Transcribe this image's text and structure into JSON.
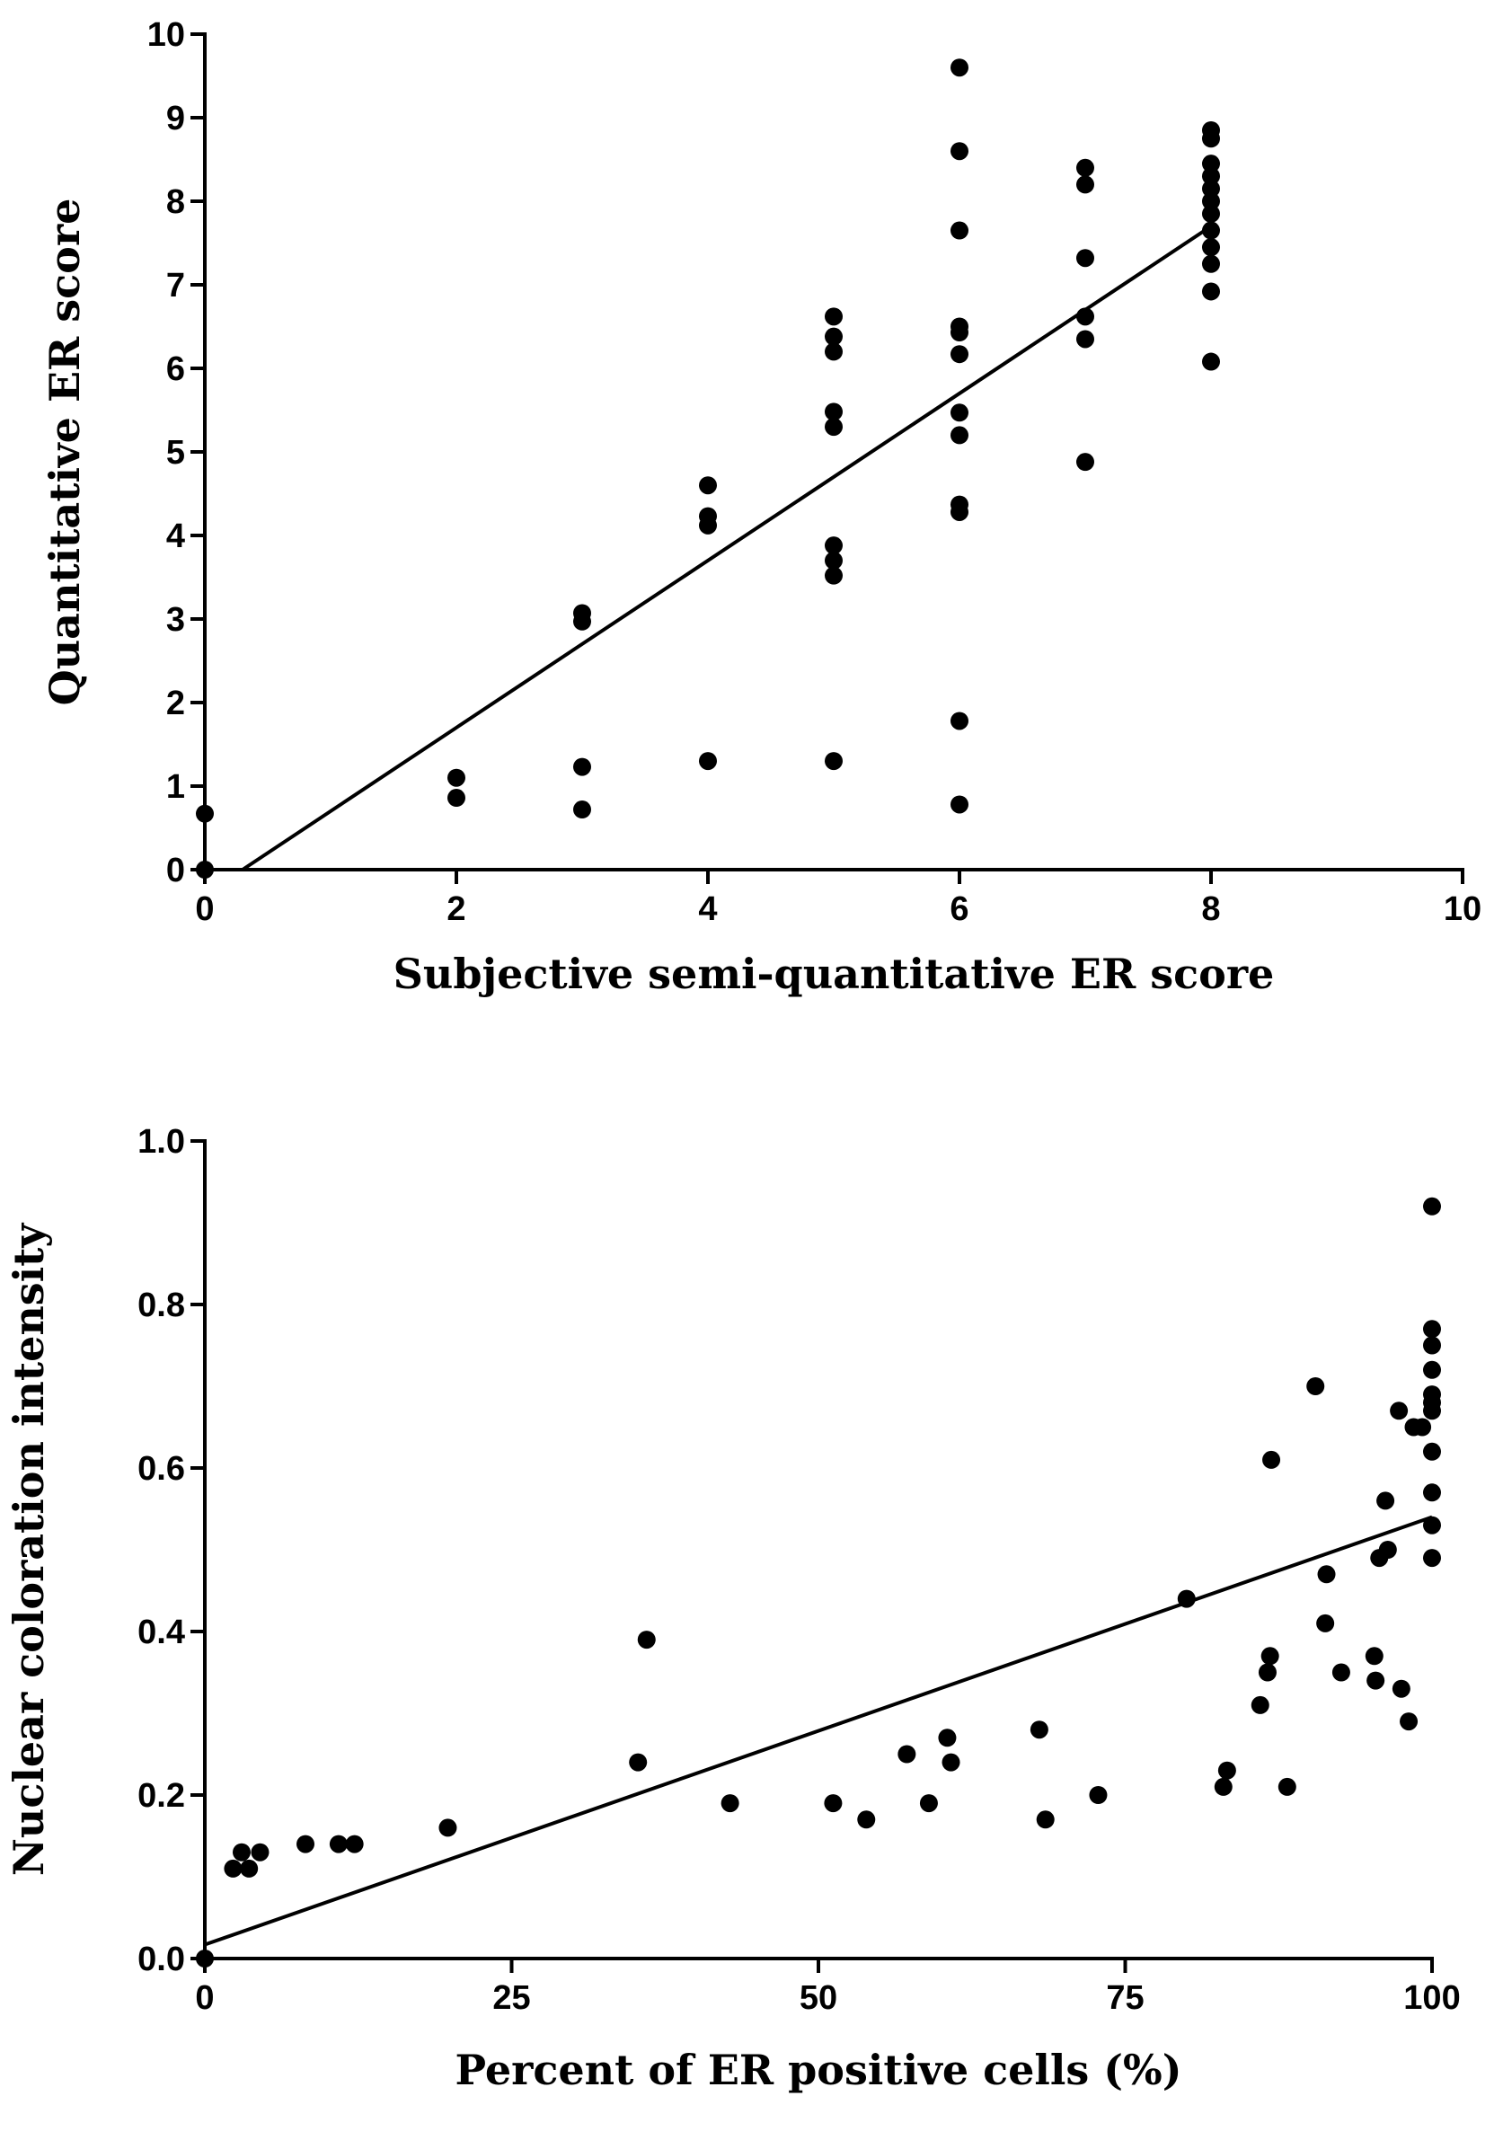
{
  "chart_data": [
    {
      "type": "scatter",
      "xlabel": "Subjective semi-quantitative ER score",
      "ylabel": "Quantitative ER score",
      "xlim": [
        0,
        10
      ],
      "ylim": [
        0,
        10
      ],
      "x_ticks": [
        0,
        2,
        4,
        6,
        8,
        10
      ],
      "y_ticks": [
        0,
        1,
        2,
        3,
        4,
        5,
        6,
        7,
        8,
        9,
        10
      ],
      "x_tick_labels": [
        "0",
        "2",
        "4",
        "6",
        "8",
        "10"
      ],
      "y_tick_labels": [
        "0",
        "1",
        "2",
        "3",
        "4",
        "5",
        "6",
        "7",
        "8",
        "9",
        "10"
      ],
      "points": [
        [
          0,
          0.67
        ],
        [
          0,
          0
        ],
        [
          2,
          1.1
        ],
        [
          2,
          0.86
        ],
        [
          3,
          3.07
        ],
        [
          3,
          2.97
        ],
        [
          3,
          1.23
        ],
        [
          3,
          0.72
        ],
        [
          4,
          4.6
        ],
        [
          4,
          4.23
        ],
        [
          4,
          4.12
        ],
        [
          4,
          1.3
        ],
        [
          5,
          6.62
        ],
        [
          5,
          6.38
        ],
        [
          5,
          6.2
        ],
        [
          5,
          5.48
        ],
        [
          5,
          5.3
        ],
        [
          5,
          3.88
        ],
        [
          5,
          3.7
        ],
        [
          5,
          3.52
        ],
        [
          5,
          1.3
        ],
        [
          6,
          9.6
        ],
        [
          6,
          8.6
        ],
        [
          6,
          7.65
        ],
        [
          6,
          6.5
        ],
        [
          6,
          6.43
        ],
        [
          6,
          6.17
        ],
        [
          6,
          5.47
        ],
        [
          6,
          5.2
        ],
        [
          6,
          4.37
        ],
        [
          6,
          4.28
        ],
        [
          6,
          1.78
        ],
        [
          6,
          0.78
        ],
        [
          7,
          8.4
        ],
        [
          7,
          8.2
        ],
        [
          7,
          7.32
        ],
        [
          7,
          6.62
        ],
        [
          7,
          6.35
        ],
        [
          7,
          4.88
        ],
        [
          8,
          8.85
        ],
        [
          8,
          8.75
        ],
        [
          8,
          8.45
        ],
        [
          8,
          8.3
        ],
        [
          8,
          8.15
        ],
        [
          8,
          8.0
        ],
        [
          8,
          7.85
        ],
        [
          8,
          7.65
        ],
        [
          8,
          7.45
        ],
        [
          8,
          7.25
        ],
        [
          8,
          6.92
        ],
        [
          8,
          6.08
        ]
      ],
      "fit_line": {
        "x": [
          0.3,
          8
        ],
        "y": [
          0,
          7.7
        ]
      }
    },
    {
      "type": "scatter",
      "xlabel": "Percent of ER positive cells (%)",
      "ylabel": "Nuclear coloration intensity",
      "xlim": [
        0,
        100
      ],
      "ylim": [
        0,
        1
      ],
      "x_ticks": [
        0,
        25,
        50,
        75,
        100
      ],
      "y_ticks": [
        0,
        0.2,
        0.4,
        0.6,
        0.8,
        1.0
      ],
      "x_tick_labels": [
        "0",
        "25",
        "50",
        "75",
        "100"
      ],
      "y_tick_labels": [
        "0.0",
        "0.2",
        "0.4",
        "0.6",
        "0.8",
        "1.0"
      ],
      "points": [
        [
          0,
          0
        ],
        [
          2.3,
          0.11
        ],
        [
          3,
          0.13
        ],
        [
          3.6,
          0.11
        ],
        [
          4.5,
          0.13
        ],
        [
          8.2,
          0.14
        ],
        [
          10.9,
          0.14
        ],
        [
          12.2,
          0.14
        ],
        [
          19.8,
          0.16
        ],
        [
          35.3,
          0.24
        ],
        [
          36,
          0.39
        ],
        [
          42.8,
          0.19
        ],
        [
          51.2,
          0.19
        ],
        [
          53.9,
          0.17
        ],
        [
          57.2,
          0.25
        ],
        [
          59,
          0.19
        ],
        [
          60.5,
          0.27
        ],
        [
          60.8,
          0.24
        ],
        [
          68,
          0.28
        ],
        [
          68.5,
          0.17
        ],
        [
          72.8,
          0.2
        ],
        [
          80,
          0.44
        ],
        [
          83,
          0.21
        ],
        [
          83.3,
          0.23
        ],
        [
          86,
          0.31
        ],
        [
          86.6,
          0.35
        ],
        [
          86.8,
          0.37
        ],
        [
          86.9,
          0.61
        ],
        [
          88.2,
          0.21
        ],
        [
          90.5,
          0.7
        ],
        [
          91.3,
          0.41
        ],
        [
          91.4,
          0.47
        ],
        [
          92.6,
          0.35
        ],
        [
          95.3,
          0.37
        ],
        [
          95.4,
          0.34
        ],
        [
          95.7,
          0.49
        ],
        [
          96.2,
          0.56
        ],
        [
          96.4,
          0.5
        ],
        [
          97.3,
          0.67
        ],
        [
          97.5,
          0.33
        ],
        [
          98.1,
          0.29
        ],
        [
          98.5,
          0.65
        ],
        [
          99.2,
          0.65
        ],
        [
          100,
          0.92
        ],
        [
          100,
          0.77
        ],
        [
          100,
          0.75
        ],
        [
          100,
          0.72
        ],
        [
          100,
          0.69
        ],
        [
          100,
          0.68
        ],
        [
          100,
          0.67
        ],
        [
          100,
          0.62
        ],
        [
          100,
          0.57
        ],
        [
          100,
          0.53
        ],
        [
          100,
          0.49
        ]
      ],
      "fit_line": {
        "x": [
          0,
          100
        ],
        "y": [
          0.017,
          0.54
        ]
      }
    }
  ]
}
